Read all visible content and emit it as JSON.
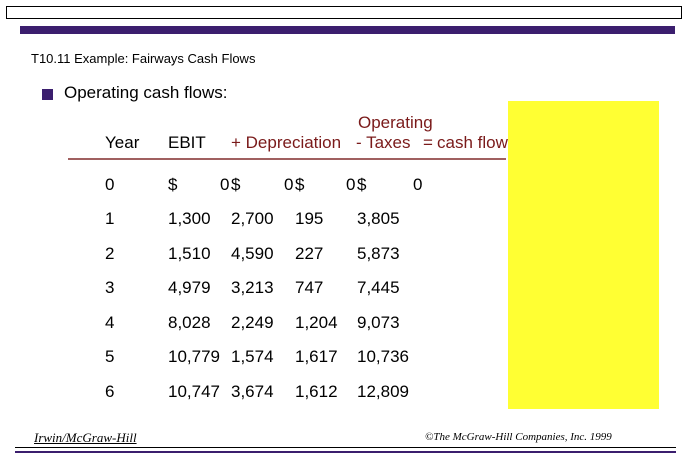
{
  "title": "T10.11  Example: Fairways Cash Flows",
  "bullet": "Operating cash flows:",
  "headers": {
    "year": "Year",
    "ebit": "EBIT",
    "depreciation": "+ Depreciation",
    "taxes": "- Taxes",
    "equals": "=",
    "ocf_top": "Operating",
    "ocf_bottom": "cash flow"
  },
  "rows": [
    {
      "year": "0",
      "ebit": "$",
      "ebit_val": "0",
      "dep": "$",
      "dep_val": "0",
      "tax": "$",
      "tax_val": "0",
      "ocf": "$",
      "ocf_val": "0"
    },
    {
      "year": "1",
      "ebit": "1,300",
      "dep": "2,700",
      "tax": "195",
      "ocf": "3,805"
    },
    {
      "year": "2",
      "ebit": "1,510",
      "dep": "4,590",
      "tax": "227",
      "ocf": "5,873"
    },
    {
      "year": "3",
      "ebit": "4,979",
      "dep": "3,213",
      "tax": "747",
      "ocf": "7,445"
    },
    {
      "year": "4",
      "ebit": "8,028",
      "dep": "2,249",
      "tax": "1,204",
      "ocf": "9,073"
    },
    {
      "year": "5",
      "ebit": "10,779",
      "dep": "1,574",
      "tax": "1,617",
      "ocf": "10,736"
    },
    {
      "year": "6",
      "ebit": "10,747",
      "dep": "3,674",
      "tax": "1,612",
      "ocf": "12,809"
    }
  ],
  "footer": {
    "left": "Irwin/McGraw-Hill",
    "right": "©The McGraw-Hill Companies, Inc. 1999"
  },
  "colors": {
    "accent": "#3b1e6e",
    "highlight": "#ffff33",
    "header_red": "#7a1a1a"
  }
}
